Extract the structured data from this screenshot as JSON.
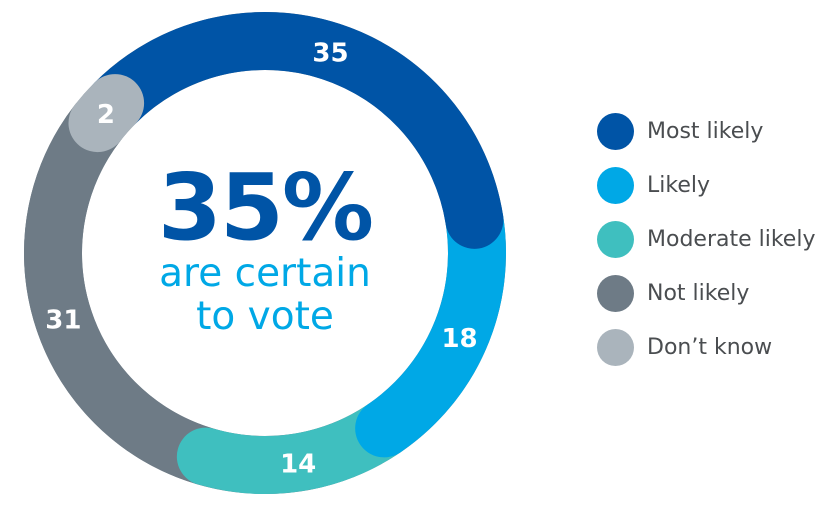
{
  "chart_data": {
    "type": "pie",
    "categories": [
      "Most likely",
      "Likely",
      "Moderate likely",
      "Not likely",
      "Don’t know"
    ],
    "values": [
      35,
      18,
      14,
      31,
      2
    ],
    "colors": [
      "#0054a6",
      "#00a8e6",
      "#3fbfbf",
      "#6e7b86",
      "#aab4bc"
    ],
    "center_text": {
      "big": "35%",
      "line1": "are certain",
      "line2": "to vote",
      "big_color": "#0054a6",
      "sub_color": "#00a8e6"
    },
    "legend_position": "right"
  }
}
